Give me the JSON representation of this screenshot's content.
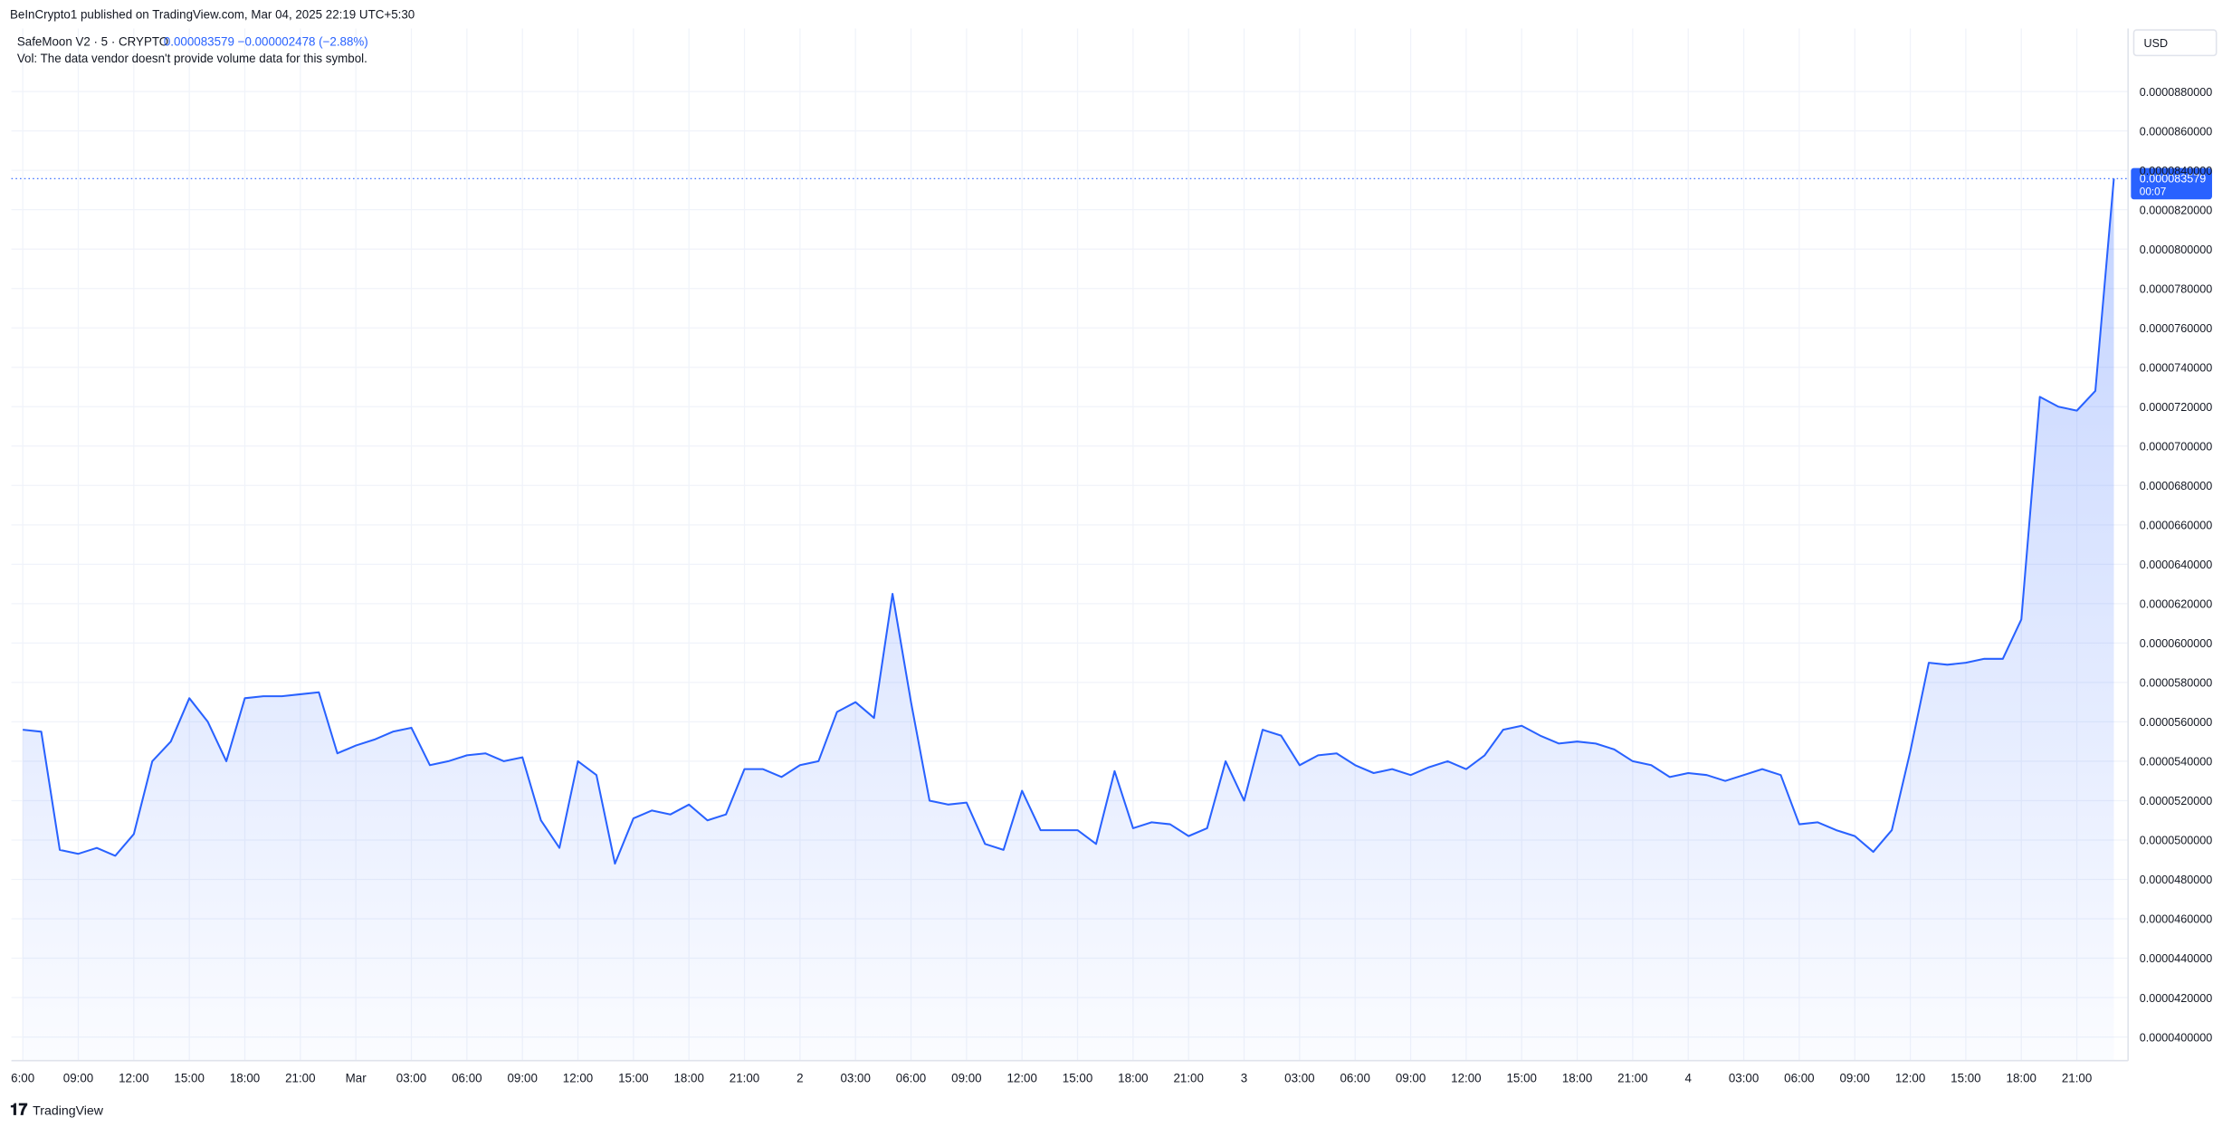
{
  "header": {
    "publisher": "BeInCrypto1 published on TradingView.com, Mar 04, 2025 22:19 UTC+5:30",
    "symbol": "SafeMoon V2 · 5 · CRYPTO",
    "change": "−0.000002478 (−2.88%)",
    "volume_note": "Vol: The data vendor doesn't provide volume data for this symbol.",
    "currency": "USD",
    "countdown": "00:07",
    "brand": "TradingView"
  },
  "chart_data": {
    "type": "line",
    "series": [
      {
        "name": "SafeMoon V2",
        "color": "#2962ff",
        "values": [
          5.56e-05,
          5.55e-05,
          4.95e-05,
          4.93e-05,
          4.96e-05,
          4.92e-05,
          5.03e-05,
          5.4e-05,
          5.5e-05,
          5.72e-05,
          5.6e-05,
          5.4e-05,
          5.72e-05,
          5.73e-05,
          5.73e-05,
          5.74e-05,
          5.75e-05,
          5.44e-05,
          5.48e-05,
          5.51e-05,
          5.55e-05,
          5.57e-05,
          5.38e-05,
          5.4e-05,
          5.43e-05,
          5.44e-05,
          5.4e-05,
          5.42e-05,
          5.1e-05,
          4.96e-05,
          5.4e-05,
          5.33e-05,
          4.88e-05,
          5.11e-05,
          5.15e-05,
          5.13e-05,
          5.18e-05,
          5.1e-05,
          5.13e-05,
          5.36e-05,
          5.36e-05,
          5.32e-05,
          5.38e-05,
          5.4e-05,
          5.65e-05,
          5.7e-05,
          5.62e-05,
          6.25e-05,
          5.7e-05,
          5.2e-05,
          5.18e-05,
          5.19e-05,
          4.98e-05,
          4.95e-05,
          5.25e-05,
          5.05e-05,
          5.05e-05,
          5.05e-05,
          4.98e-05,
          5.35e-05,
          5.06e-05,
          5.09e-05,
          5.08e-05,
          5.02e-05,
          5.06e-05,
          5.4e-05,
          5.2e-05,
          5.56e-05,
          5.53e-05,
          5.38e-05,
          5.43e-05,
          5.44e-05,
          5.38e-05,
          5.34e-05,
          5.36e-05,
          5.33e-05,
          5.37e-05,
          5.4e-05,
          5.36e-05,
          5.43e-05,
          5.56e-05,
          5.58e-05,
          5.53e-05,
          5.49e-05,
          5.5e-05,
          5.49e-05,
          5.46e-05,
          5.4e-05,
          5.38e-05,
          5.32e-05,
          5.34e-05,
          5.33e-05,
          5.3e-05,
          5.33e-05,
          5.36e-05,
          5.33e-05,
          5.08e-05,
          5.09e-05,
          5.05e-05,
          5.02e-05,
          4.94e-05,
          5.05e-05,
          5.45e-05,
          5.9e-05,
          5.89e-05,
          5.9e-05,
          5.92e-05,
          5.92e-05,
          6.12e-05,
          7.25e-05,
          7.2e-05,
          7.18e-05,
          7.28e-05,
          8.3579e-05
        ]
      }
    ],
    "categories": [
      "6:00",
      null,
      null,
      "09:00",
      null,
      null,
      "12:00",
      null,
      null,
      "15:00",
      null,
      null,
      "18:00",
      null,
      null,
      "21:00",
      null,
      null,
      "Mar",
      null,
      null,
      "03:00",
      null,
      null,
      "06:00",
      null,
      null,
      "09:00",
      null,
      null,
      "12:00",
      null,
      null,
      "15:00",
      null,
      null,
      "18:00",
      null,
      null,
      "21:00",
      null,
      null,
      "2",
      null,
      null,
      "03:00",
      null,
      null,
      "06:00",
      null,
      null,
      "09:00",
      null,
      null,
      "12:00",
      null,
      null,
      "15:00",
      null,
      null,
      "18:00",
      null,
      null,
      "21:00",
      null,
      null,
      "3",
      null,
      null,
      "03:00",
      null,
      null,
      "06:00",
      null,
      null,
      "09:00",
      null,
      null,
      "12:00",
      null,
      null,
      "15:00",
      null,
      null,
      "18:00",
      null,
      null,
      "21:00",
      null,
      null,
      "4",
      null,
      null,
      "03:00",
      null,
      null,
      "06:00",
      null,
      null,
      "09:00",
      null,
      null,
      "12:00",
      null,
      null,
      "15:00",
      null,
      null,
      "18:00",
      null,
      null,
      "21:00",
      null,
      null
    ],
    "ylim": [
      3.88e-05,
      9.12e-05
    ],
    "yticks": [
      {
        "value": 4e-05,
        "label": "0.0000400000"
      },
      {
        "value": 4.2e-05,
        "label": "0.0000420000"
      },
      {
        "value": 4.4e-05,
        "label": "0.0000440000"
      },
      {
        "value": 4.6e-05,
        "label": "0.0000460000"
      },
      {
        "value": 4.8e-05,
        "label": "0.0000480000"
      },
      {
        "value": 5e-05,
        "label": "0.0000500000"
      },
      {
        "value": 5.2e-05,
        "label": "0.0000520000"
      },
      {
        "value": 5.4e-05,
        "label": "0.0000540000"
      },
      {
        "value": 5.6e-05,
        "label": "0.0000560000"
      },
      {
        "value": 5.8e-05,
        "label": "0.0000580000"
      },
      {
        "value": 6e-05,
        "label": "0.0000600000"
      },
      {
        "value": 6.2e-05,
        "label": "0.0000620000"
      },
      {
        "value": 6.4e-05,
        "label": "0.0000640000"
      },
      {
        "value": 6.6e-05,
        "label": "0.0000660000"
      },
      {
        "value": 6.8e-05,
        "label": "0.0000680000"
      },
      {
        "value": 7e-05,
        "label": "0.0000700000"
      },
      {
        "value": 7.2e-05,
        "label": "0.0000720000"
      },
      {
        "value": 7.4e-05,
        "label": "0.0000740000"
      },
      {
        "value": 7.6e-05,
        "label": "0.0000760000"
      },
      {
        "value": 7.8e-05,
        "label": "0.0000780000"
      },
      {
        "value": 8e-05,
        "label": "0.0000800000"
      },
      {
        "value": 8.2e-05,
        "label": "0.0000820000"
      },
      {
        "value": 8.4e-05,
        "label": "0.0000840000"
      },
      {
        "value": 8.6e-05,
        "label": "0.0000860000"
      },
      {
        "value": 8.8e-05,
        "label": "0.0000880000"
      }
    ],
    "grid": true
  }
}
